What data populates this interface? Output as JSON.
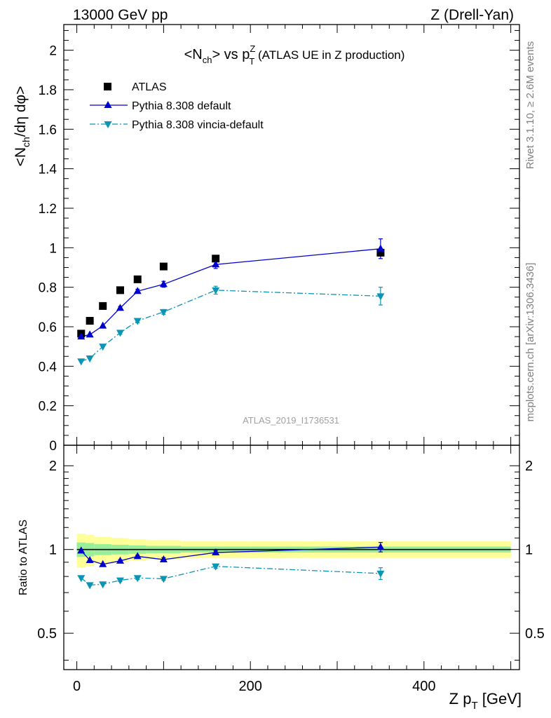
{
  "header": {
    "left": "13000 GeV pp",
    "right": "Z (Drell-Yan)"
  },
  "side_labels": {
    "rivet": "Rivet 3.1.10, ≥ 2.6M events",
    "mcplots": "mcplots.cern.ch [arXiv:1306.3436]"
  },
  "colors": {
    "atlas": "#000000",
    "pythia_default": "#0000cc",
    "pythia_vincia": "#0a95b5",
    "band_outer": "#ffff99",
    "band_inner": "#99ee99"
  },
  "chart_data": [
    {
      "type": "scatter",
      "panel": "main",
      "title_parts": {
        "pre": "<N",
        "sub1": "ch",
        "mid": "> vs p",
        "sup": "Z",
        "sub2": "T",
        "post": " (ATLAS UE in Z production)"
      },
      "ylabel_parts": {
        "a": "<N",
        "b": "ch",
        "c": "/dη dφ>"
      },
      "watermark": "ATLAS_2019_I1736531",
      "xlim": [
        -15,
        510
      ],
      "ylim": [
        0,
        2.13
      ],
      "yticks": [
        0,
        0.2,
        0.4,
        0.6,
        0.8,
        1,
        1.2,
        1.4,
        1.6,
        1.8,
        2
      ],
      "ytick_labels": [
        "0",
        "0.2",
        "0.4",
        "0.6",
        "0.8",
        "1",
        "1.2",
        "1.4",
        "1.6",
        "1.8",
        "2"
      ],
      "legend_position": "top-left",
      "series": [
        {
          "name": "ATLAS",
          "marker": "square",
          "x": [
            5,
            15,
            30,
            50,
            70,
            100,
            160,
            350
          ],
          "y": [
            0.565,
            0.63,
            0.705,
            0.785,
            0.84,
            0.905,
            0.945,
            0.975
          ],
          "err": [
            0.005,
            0.005,
            0.005,
            0.005,
            0.005,
            0.005,
            0.005,
            0.012
          ]
        },
        {
          "name": "Pythia 8.308 default",
          "marker": "triangle-up",
          "line": "solid",
          "x": [
            5,
            15,
            30,
            50,
            70,
            100,
            160,
            350
          ],
          "y": [
            0.55,
            0.56,
            0.605,
            0.695,
            0.78,
            0.815,
            0.915,
            0.995
          ],
          "err": [
            0.005,
            0.005,
            0.005,
            0.008,
            0.01,
            0.015,
            0.02,
            0.05
          ]
        },
        {
          "name": "Pythia 8.308 vincia-default",
          "marker": "triangle-down",
          "line": "dashdot",
          "x": [
            5,
            15,
            30,
            50,
            70,
            100,
            160,
            350
          ],
          "y": [
            0.425,
            0.44,
            0.5,
            0.57,
            0.63,
            0.675,
            0.785,
            0.755
          ],
          "err": [
            0.005,
            0.005,
            0.005,
            0.008,
            0.01,
            0.012,
            0.02,
            0.045
          ]
        }
      ]
    },
    {
      "type": "scatter",
      "panel": "ratio",
      "ylabel": "Ratio to ATLAS",
      "xlabel_parts": {
        "a": "Z p",
        "b": "T",
        "c": " [GeV]"
      },
      "xlim": [
        -15,
        510
      ],
      "ylim": [
        0.37,
        2.37
      ],
      "xticks": [
        0,
        200,
        400
      ],
      "xtick_labels": [
        "0",
        "200",
        "400"
      ],
      "yticks": [
        0.5,
        1,
        2
      ],
      "ytick_labels": [
        "0.5",
        "1",
        "2"
      ],
      "bands": {
        "x_edges": [
          0,
          10,
          20,
          40,
          60,
          80,
          120,
          200,
          500
        ],
        "outer": [
          0.14,
          0.13,
          0.11,
          0.1,
          0.09,
          0.08,
          0.07,
          0.07
        ],
        "inner": [
          0.06,
          0.055,
          0.045,
          0.04,
          0.035,
          0.03,
          0.025,
          0.025
        ]
      },
      "series": [
        {
          "name": "Pythia 8.308 default",
          "x": [
            5,
            15,
            30,
            50,
            70,
            100,
            160,
            350
          ],
          "y": [
            0.99,
            0.915,
            0.885,
            0.91,
            0.945,
            0.92,
            0.975,
            1.02
          ],
          "err": [
            0.005,
            0.005,
            0.005,
            0.008,
            0.01,
            0.015,
            0.015,
            0.04
          ]
        },
        {
          "name": "Pythia 8.308 vincia-default",
          "x": [
            5,
            15,
            30,
            50,
            70,
            100,
            160,
            350
          ],
          "y": [
            0.79,
            0.745,
            0.75,
            0.775,
            0.79,
            0.785,
            0.87,
            0.82
          ],
          "err": [
            0.005,
            0.005,
            0.005,
            0.008,
            0.01,
            0.01,
            0.015,
            0.04
          ]
        }
      ]
    }
  ]
}
